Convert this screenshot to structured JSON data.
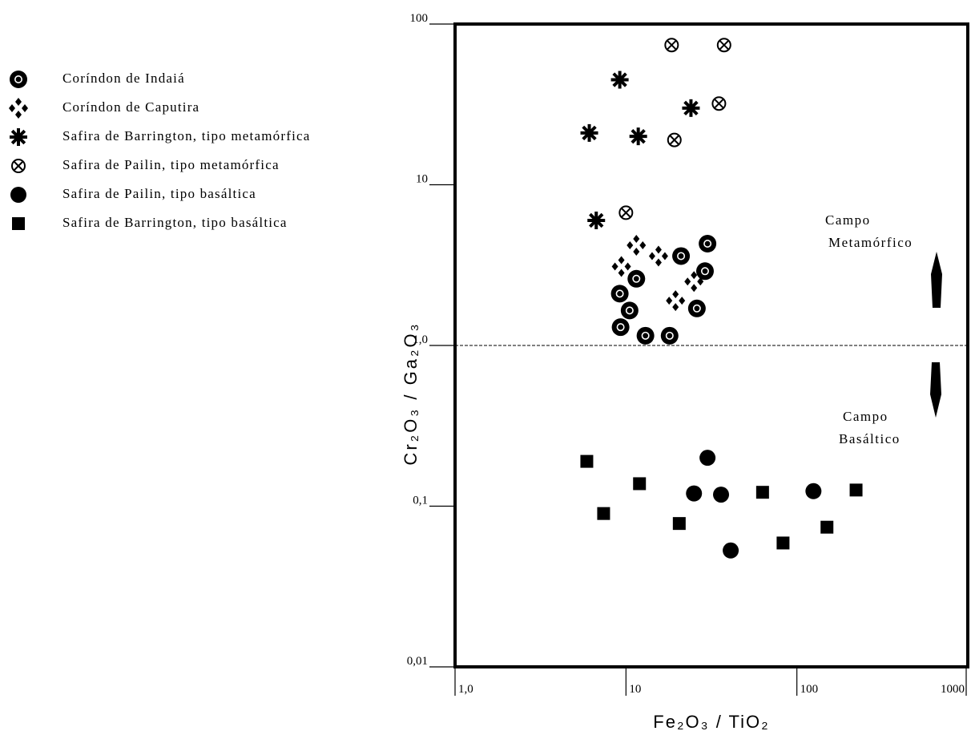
{
  "chart_data": {
    "type": "scatter",
    "title": "",
    "xlabel": "Fe₂O₃ / TiO₂",
    "ylabel": "Cr₂O₃ / Ga₂O₃",
    "xscale": "log",
    "yscale": "log",
    "xlim": [
      1,
      1000
    ],
    "ylim": [
      0.01,
      100
    ],
    "x_ticks": [
      {
        "value": 1,
        "label": "1,0"
      },
      {
        "value": 10,
        "label": "10"
      },
      {
        "value": 100,
        "label": "100"
      },
      {
        "value": 1000,
        "label": "1000"
      }
    ],
    "y_ticks": [
      {
        "value": 100,
        "label": "100"
      },
      {
        "value": 10,
        "label": "10"
      },
      {
        "value": 1,
        "label": "1,0"
      },
      {
        "value": 0.1,
        "label": "0,1"
      },
      {
        "value": 0.01,
        "label": "0,01"
      }
    ],
    "grid": false,
    "legend_position": "left",
    "reference_line": {
      "y": 1.0,
      "style": "dashed"
    },
    "annotations": [
      {
        "lines": [
          "Campo",
          "Metamórfico"
        ],
        "x": 350,
        "y": 6.0
      },
      {
        "lines": [
          "Campo",
          "Basáltico"
        ],
        "x": 350,
        "y": 0.4
      }
    ],
    "series": [
      {
        "name": "Coríndon de Indaiá",
        "marker": "ring",
        "points": [
          [
            30,
            4.3
          ],
          [
            21,
            3.6
          ],
          [
            11.5,
            2.6
          ],
          [
            29,
            2.9
          ],
          [
            9.2,
            2.1
          ],
          [
            10.5,
            1.65
          ],
          [
            26,
            1.7
          ],
          [
            9.3,
            1.3
          ],
          [
            13,
            1.15
          ],
          [
            18,
            1.15
          ]
        ]
      },
      {
        "name": "Coríndon de Caputira",
        "marker": "diamond-cross",
        "points": [
          [
            11.5,
            4.2
          ],
          [
            15.5,
            3.6
          ],
          [
            9.4,
            3.1
          ],
          [
            25,
            2.5
          ],
          [
            19.5,
            1.9
          ]
        ]
      },
      {
        "name": "Safira de Barrington, tipo metamórfica",
        "marker": "asterisk",
        "points": [
          [
            9.2,
            45
          ],
          [
            24,
            30
          ],
          [
            6.1,
            21
          ],
          [
            11.8,
            20
          ],
          [
            6.7,
            6
          ]
        ]
      },
      {
        "name": "Safira de Pailin, tipo metamórfica",
        "marker": "circled-x",
        "points": [
          [
            18.5,
            74
          ],
          [
            37.5,
            74
          ],
          [
            35,
            32
          ],
          [
            19.2,
            19
          ],
          [
            10,
            6.7
          ]
        ]
      },
      {
        "name": "Safira de Pailin, tipo basáltica",
        "marker": "circle",
        "points": [
          [
            30,
            0.2
          ],
          [
            25,
            0.12
          ],
          [
            36,
            0.118
          ],
          [
            125,
            0.124
          ],
          [
            41,
            0.053
          ]
        ]
      },
      {
        "name": "Safira de Barrington, tipo basáltica",
        "marker": "square",
        "points": [
          [
            5.9,
            0.19
          ],
          [
            7.4,
            0.09
          ],
          [
            12,
            0.138
          ],
          [
            20.5,
            0.078
          ],
          [
            63,
            0.122
          ],
          [
            83,
            0.059
          ],
          [
            150,
            0.074
          ],
          [
            222,
            0.126
          ]
        ]
      }
    ]
  }
}
